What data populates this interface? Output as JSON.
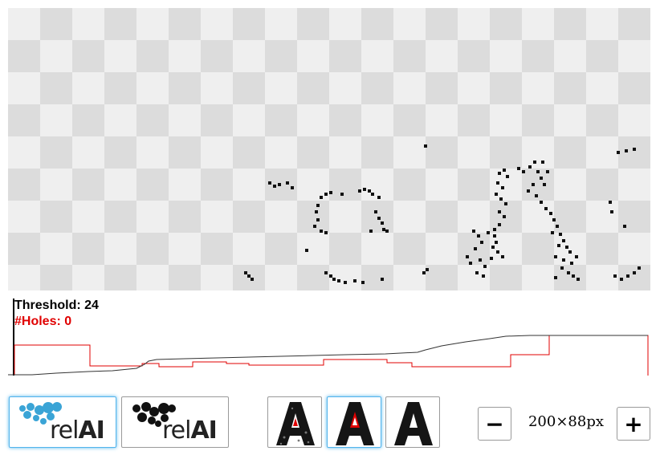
{
  "status": {
    "threshold_label": "Threshold: 24",
    "holes_label": "#Holes: 0"
  },
  "logo_tiles": [
    {
      "name": "logo-color",
      "rel": "rel",
      "ai": "AI",
      "selected": true,
      "mark_color": "#3aa4d6"
    },
    {
      "name": "logo-black",
      "rel": "rel",
      "ai": "AI",
      "selected": false,
      "mark_color": "#111111"
    }
  ],
  "glyph_tiles": [
    {
      "name": "glyph-noisy",
      "letter": "A",
      "selected": false
    },
    {
      "name": "glyph-outline",
      "letter": "A",
      "selected": true
    },
    {
      "name": "glyph-clean",
      "letter": "A",
      "selected": false
    }
  ],
  "zoom": {
    "minus_label": "−",
    "plus_label": "+",
    "size_text": "200×88px"
  },
  "colors": {
    "accent": "#52b4ec",
    "holes": "#e00000",
    "threshold_curve": "#333333"
  }
}
